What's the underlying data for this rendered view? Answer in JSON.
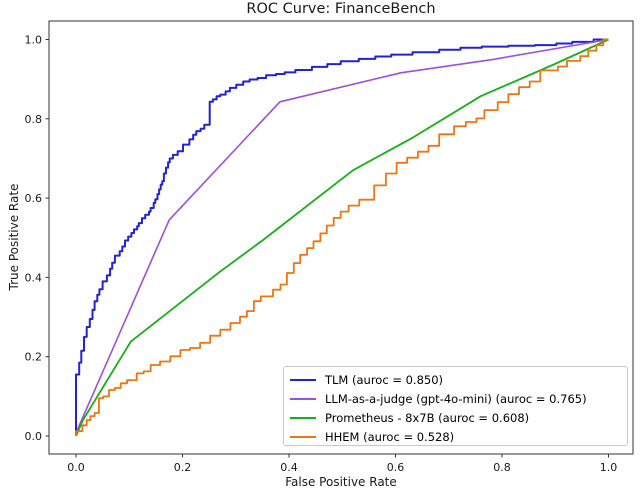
{
  "chart_data": {
    "type": "line",
    "title": "ROC Curve: FinanceBench",
    "xlabel": "False Positive Rate",
    "ylabel": "True Positive Rate",
    "xlim": [
      -0.05,
      1.05
    ],
    "ylim": [
      -0.05,
      1.05
    ],
    "x_ticks": [
      "0.0",
      "0.2",
      "0.4",
      "0.6",
      "0.8",
      "1.0"
    ],
    "y_ticks": [
      "0.0",
      "0.2",
      "0.4",
      "0.6",
      "0.8",
      "1.0"
    ],
    "grid": false,
    "legend_position": "lower right",
    "series": [
      {
        "id": "tlm",
        "name": "TLM",
        "auroc": 0.85,
        "legend_label": "TLM (auroc = 0.850)",
        "color": "#2222d6",
        "style": "step",
        "points": [
          [
            0,
            0
          ],
          [
            0,
            0.129
          ],
          [
            0.006,
            0.155
          ],
          [
            0.01,
            0.185
          ],
          [
            0.015,
            0.215
          ],
          [
            0.02,
            0.25
          ],
          [
            0.026,
            0.275
          ],
          [
            0.031,
            0.295
          ],
          [
            0.035,
            0.318
          ],
          [
            0.04,
            0.34
          ],
          [
            0.044,
            0.356
          ],
          [
            0.05,
            0.37
          ],
          [
            0.058,
            0.39
          ],
          [
            0.064,
            0.405
          ],
          [
            0.068,
            0.422
          ],
          [
            0.073,
            0.437
          ],
          [
            0.082,
            0.455
          ],
          [
            0.087,
            0.466
          ],
          [
            0.092,
            0.478
          ],
          [
            0.098,
            0.493
          ],
          [
            0.104,
            0.503
          ],
          [
            0.109,
            0.512
          ],
          [
            0.115,
            0.521
          ],
          [
            0.118,
            0.529
          ],
          [
            0.124,
            0.537
          ],
          [
            0.13,
            0.549
          ],
          [
            0.137,
            0.558
          ],
          [
            0.14,
            0.566
          ],
          [
            0.146,
            0.575
          ],
          [
            0.149,
            0.588
          ],
          [
            0.153,
            0.597
          ],
          [
            0.156,
            0.61
          ],
          [
            0.159,
            0.622
          ],
          [
            0.162,
            0.634
          ],
          [
            0.165,
            0.643
          ],
          [
            0.169,
            0.662
          ],
          [
            0.173,
            0.677
          ],
          [
            0.176,
            0.69
          ],
          [
            0.182,
            0.7
          ],
          [
            0.191,
            0.709
          ],
          [
            0.201,
            0.718
          ],
          [
            0.213,
            0.735
          ],
          [
            0.22,
            0.748
          ],
          [
            0.226,
            0.76
          ],
          [
            0.234,
            0.769
          ],
          [
            0.241,
            0.775
          ],
          [
            0.251,
            0.785
          ],
          [
            0.257,
            0.843
          ],
          [
            0.264,
            0.849
          ],
          [
            0.271,
            0.857
          ],
          [
            0.281,
            0.861
          ],
          [
            0.289,
            0.869
          ],
          [
            0.301,
            0.878
          ],
          [
            0.314,
            0.886
          ],
          [
            0.326,
            0.894
          ],
          [
            0.341,
            0.899
          ],
          [
            0.357,
            0.903
          ],
          [
            0.376,
            0.91
          ],
          [
            0.392,
            0.913
          ],
          [
            0.412,
            0.917
          ],
          [
            0.443,
            0.923
          ],
          [
            0.472,
            0.931
          ],
          [
            0.497,
            0.938
          ],
          [
            0.531,
            0.945
          ],
          [
            0.562,
            0.951
          ],
          [
            0.592,
            0.957
          ],
          [
            0.632,
            0.962
          ],
          [
            0.682,
            0.968
          ],
          [
            0.722,
            0.974
          ],
          [
            0.762,
            0.979
          ],
          [
            0.812,
            0.982
          ],
          [
            0.862,
            0.984
          ],
          [
            0.902,
            0.986
          ],
          [
            0.932,
            0.99
          ],
          [
            0.972,
            0.994
          ],
          [
            1,
            1
          ]
        ]
      },
      {
        "id": "llm-judge",
        "name": "LLM-as-a-judge (gpt-4o-mini)",
        "auroc": 0.765,
        "legend_label": "LLM-as-a-judge (gpt-4o-mini) (auroc = 0.765)",
        "color": "#9c4fe0",
        "style": "line",
        "points": [
          [
            0,
            0
          ],
          [
            0.004,
            0.02
          ],
          [
            0.175,
            0.545
          ],
          [
            0.383,
            0.843
          ],
          [
            0.61,
            0.916
          ],
          [
            0.78,
            0.949
          ],
          [
            1,
            1
          ]
        ]
      },
      {
        "id": "prometheus",
        "name": "Prometheus - 8x7B",
        "auroc": 0.608,
        "legend_label": "Prometheus - 8x7B (auroc = 0.608)",
        "color": "#18b018",
        "style": "line",
        "points": [
          [
            0,
            0
          ],
          [
            0.013,
            0.04
          ],
          [
            0.103,
            0.238
          ],
          [
            0.27,
            0.414
          ],
          [
            0.35,
            0.493
          ],
          [
            0.52,
            0.67
          ],
          [
            0.633,
            0.753
          ],
          [
            0.76,
            0.857
          ],
          [
            0.897,
            0.937
          ],
          [
            1,
            1
          ]
        ]
      },
      {
        "id": "hhem",
        "name": "HHEM",
        "auroc": 0.528,
        "legend_label": "HHEM (auroc = 0.528)",
        "color": "#ee750f",
        "style": "step",
        "points": [
          [
            0,
            0
          ],
          [
            0.012,
            0.012
          ],
          [
            0.02,
            0.027
          ],
          [
            0.027,
            0.04
          ],
          [
            0.035,
            0.05
          ],
          [
            0.043,
            0.058
          ],
          [
            0.051,
            0.095
          ],
          [
            0.062,
            0.1
          ],
          [
            0.073,
            0.116
          ],
          [
            0.084,
            0.121
          ],
          [
            0.096,
            0.133
          ],
          [
            0.114,
            0.141
          ],
          [
            0.127,
            0.158
          ],
          [
            0.14,
            0.163
          ],
          [
            0.158,
            0.179
          ],
          [
            0.177,
            0.188
          ],
          [
            0.196,
            0.201
          ],
          [
            0.214,
            0.217
          ],
          [
            0.233,
            0.222
          ],
          [
            0.252,
            0.235
          ],
          [
            0.271,
            0.253
          ],
          [
            0.29,
            0.268
          ],
          [
            0.308,
            0.285
          ],
          [
            0.321,
            0.301
          ],
          [
            0.334,
            0.315
          ],
          [
            0.347,
            0.34
          ],
          [
            0.37,
            0.352
          ],
          [
            0.384,
            0.369
          ],
          [
            0.396,
            0.382
          ],
          [
            0.409,
            0.411
          ],
          [
            0.421,
            0.436
          ],
          [
            0.434,
            0.457
          ],
          [
            0.446,
            0.474
          ],
          [
            0.459,
            0.491
          ],
          [
            0.471,
            0.511
          ],
          [
            0.484,
            0.531
          ],
          [
            0.497,
            0.55
          ],
          [
            0.512,
            0.566
          ],
          [
            0.532,
            0.581
          ],
          [
            0.56,
            0.596
          ],
          [
            0.582,
            0.632
          ],
          [
            0.602,
            0.662
          ],
          [
            0.622,
            0.689
          ],
          [
            0.642,
            0.702
          ],
          [
            0.662,
            0.717
          ],
          [
            0.682,
            0.732
          ],
          [
            0.71,
            0.761
          ],
          [
            0.732,
            0.781
          ],
          [
            0.752,
            0.792
          ],
          [
            0.767,
            0.801
          ],
          [
            0.792,
            0.822
          ],
          [
            0.812,
            0.842
          ],
          [
            0.832,
            0.862
          ],
          [
            0.852,
            0.88
          ],
          [
            0.872,
            0.894
          ],
          [
            0.905,
            0.922
          ],
          [
            0.922,
            0.932
          ],
          [
            0.947,
            0.946
          ],
          [
            0.962,
            0.958
          ],
          [
            0.977,
            0.972
          ],
          [
            0.99,
            0.985
          ],
          [
            1,
            1
          ]
        ]
      }
    ]
  }
}
